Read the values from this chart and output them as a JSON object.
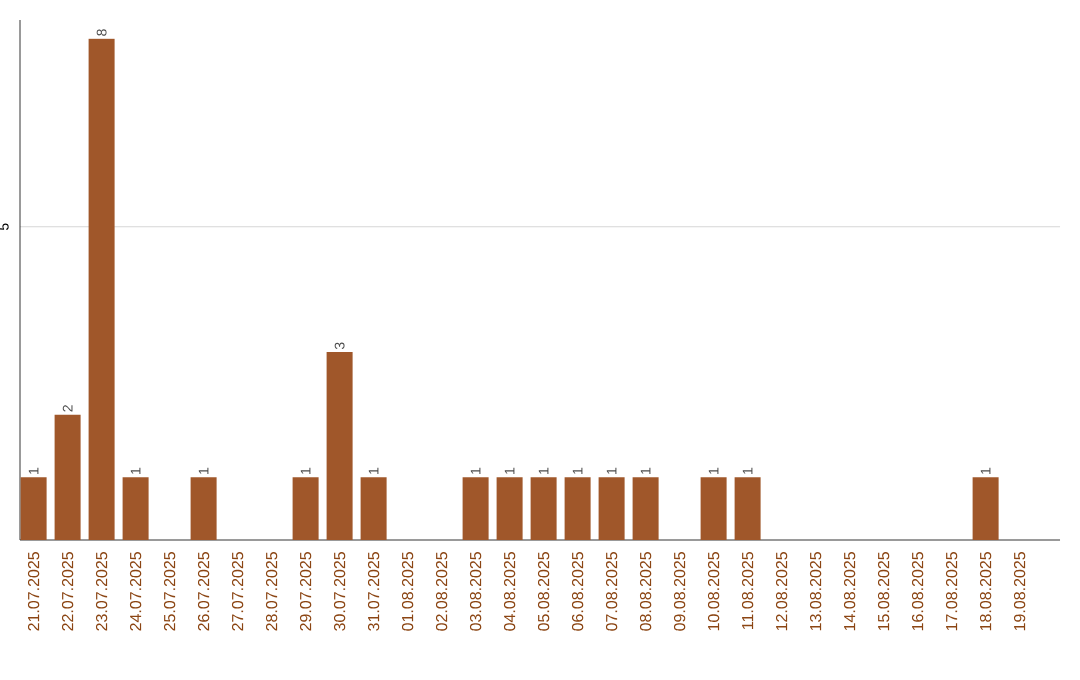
{
  "chart_data": {
    "type": "bar",
    "categories": [
      "21.07.2025",
      "22.07.2025",
      "23.07.2025",
      "24.07.2025",
      "25.07.2025",
      "26.07.2025",
      "27.07.2025",
      "28.07.2025",
      "29.07.2025",
      "30.07.2025",
      "31.07.2025",
      "01.08.2025",
      "02.08.2025",
      "03.08.2025",
      "04.08.2025",
      "05.08.2025",
      "06.08.2025",
      "07.08.2025",
      "08.08.2025",
      "09.08.2025",
      "10.08.2025",
      "11.08.2025",
      "12.08.2025",
      "13.08.2025",
      "14.08.2025",
      "15.08.2025",
      "16.08.2025",
      "17.08.2025",
      "18.08.2025",
      "19.08.2025"
    ],
    "values": [
      1,
      2,
      8,
      1,
      0,
      1,
      0,
      0,
      1,
      3,
      1,
      0,
      0,
      1,
      1,
      1,
      1,
      1,
      1,
      0,
      1,
      1,
      0,
      0,
      0,
      0,
      0,
      0,
      1,
      0
    ],
    "value_labels": [
      "1",
      "2",
      "8",
      "1",
      null,
      "1",
      null,
      null,
      "1",
      "3",
      "1",
      null,
      null,
      "1",
      "1",
      "1",
      "1",
      "1",
      "1",
      null,
      "1",
      "1",
      null,
      null,
      null,
      null,
      null,
      null,
      "1",
      null
    ],
    "color": "#a0572a",
    "ylim": [
      0,
      8.3
    ],
    "yticks": [
      5
    ],
    "grid": "y"
  }
}
